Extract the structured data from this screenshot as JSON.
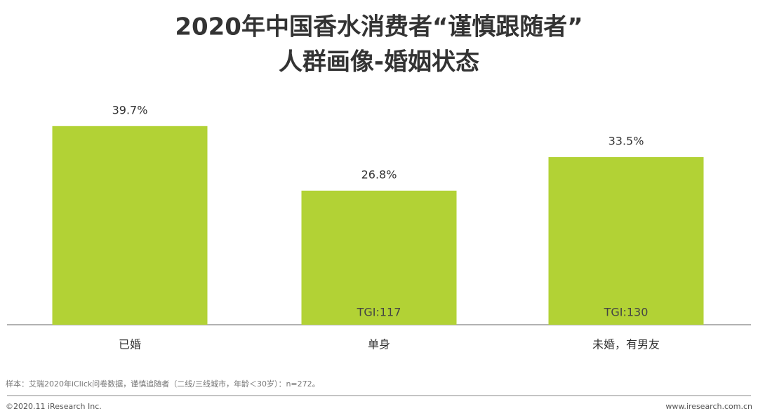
{
  "chart_data": {
    "type": "bar",
    "title": [
      "2020年中国香水消费者“谨慎跟随者”",
      "人群画像-婚姻状态"
    ],
    "categories": [
      "已婚",
      "单身",
      "未婚，有男友"
    ],
    "values": [
      39.7,
      26.8,
      33.5
    ],
    "value_labels": [
      "39.7%",
      "26.8%",
      "33.5%"
    ],
    "tgi_labels": [
      null,
      "TGI:117",
      "TGI:130"
    ],
    "color": "#b2d235",
    "ylim": [
      0,
      45
    ]
  },
  "footer": {
    "source": "样本：艾瑞2020年iClick问卷数据，谨慎追随者（二线/三线城市，年龄＜30岁）：n=272。",
    "copyright": "©2020.11 iResearch Inc.",
    "website": "www.iresearch.com.cn"
  }
}
